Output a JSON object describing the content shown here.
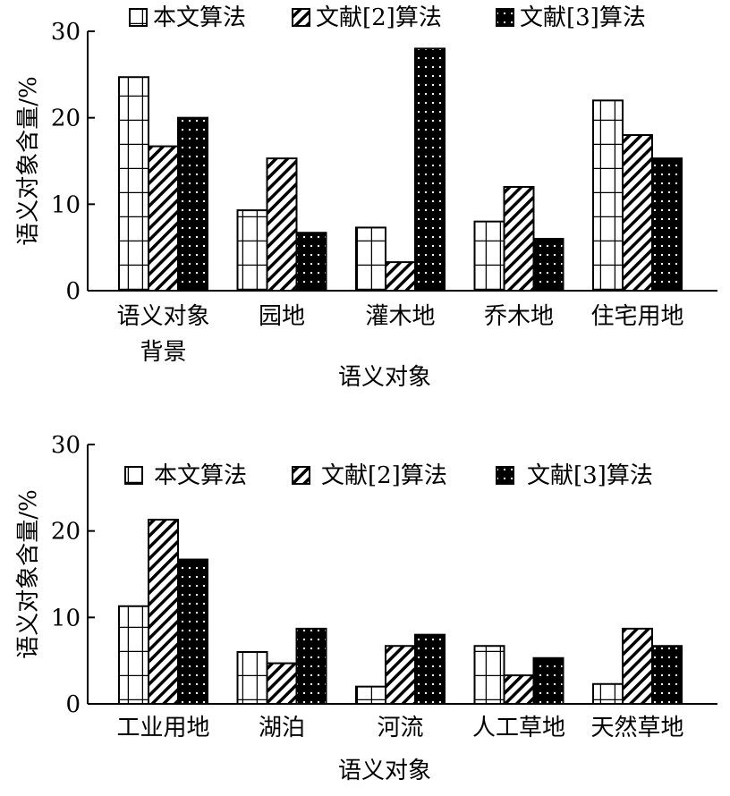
{
  "colors": {
    "ink": "#000000",
    "paper": "#ffffff"
  },
  "chart_data": [
    {
      "type": "bar",
      "xlabel": "语义对象",
      "ylabel": "语义对象含量/%",
      "ylim": [
        0,
        30
      ],
      "yticks": [
        "0",
        "10",
        "20",
        "30"
      ],
      "grid": false,
      "legend_position": "top",
      "categories": [
        [
          "语义对象",
          "背景"
        ],
        [
          "园地"
        ],
        [
          "灌木地"
        ],
        [
          "乔木地"
        ],
        [
          "住宅用地"
        ]
      ],
      "series": [
        {
          "name": "本文算法",
          "pattern": "grid",
          "values": [
            24.7,
            9.3,
            7.3,
            8.0,
            22.0
          ]
        },
        {
          "name": "文献[2]算法",
          "pattern": "diagonal",
          "values": [
            16.7,
            15.3,
            3.3,
            12.0,
            18.0
          ]
        },
        {
          "name": "文献[3]算法",
          "pattern": "dots",
          "values": [
            20.0,
            6.7,
            28.0,
            6.0,
            15.3
          ]
        }
      ]
    },
    {
      "type": "bar",
      "xlabel": "语义对象",
      "ylabel": "语义对象含量/%",
      "ylim": [
        0,
        30
      ],
      "yticks": [
        "0",
        "10",
        "20",
        "30"
      ],
      "grid": false,
      "legend_position": "top",
      "categories": [
        [
          "工业用地"
        ],
        [
          "湖泊"
        ],
        [
          "河流"
        ],
        [
          "人工草地"
        ],
        [
          "天然草地"
        ]
      ],
      "series": [
        {
          "name": "本文算法",
          "pattern": "grid",
          "values": [
            11.3,
            6.0,
            2.0,
            6.7,
            2.3
          ]
        },
        {
          "name": "文献[2]算法",
          "pattern": "diagonal",
          "values": [
            21.3,
            4.7,
            6.7,
            3.3,
            8.7
          ]
        },
        {
          "name": "文献[3]算法",
          "pattern": "dots",
          "values": [
            16.7,
            8.7,
            8.0,
            5.3,
            6.7
          ]
        }
      ]
    }
  ]
}
